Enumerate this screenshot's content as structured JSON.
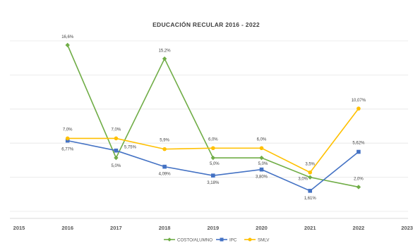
{
  "chart_data": {
    "type": "line",
    "title": "EDUCACIÓN RECULAR 2016 - 2022",
    "xlabel": "",
    "ylabel": "",
    "x_ticks": [
      "2015",
      "2016",
      "2017",
      "2018",
      "2019",
      "2020",
      "2021",
      "2022",
      "2023"
    ],
    "xlim": [
      2015,
      2023
    ],
    "ylim": [
      0,
      18
    ],
    "grid": true,
    "legend_position": "bottom",
    "series": [
      {
        "name": "COSTO/ALUMNO",
        "color": "#70ad47",
        "marker": "diamond",
        "x": [
          2016,
          2017,
          2018,
          2019,
          2020,
          2021,
          2022
        ],
        "y": [
          16.6,
          5.0,
          15.2,
          5.0,
          5.0,
          3.0,
          2.0
        ],
        "labels": [
          "16,6%",
          "5,0%",
          "15,2%",
          "5,0%",
          "5,0%",
          "3,0%",
          "2,0%"
        ]
      },
      {
        "name": "IPC",
        "color": "#4472c4",
        "marker": "square",
        "x": [
          2016,
          2017,
          2018,
          2019,
          2020,
          2021,
          2022
        ],
        "y": [
          6.77,
          5.75,
          4.09,
          3.18,
          3.8,
          1.61,
          5.62
        ],
        "labels": [
          "6,77%",
          "5,75%",
          "4,09%",
          "3,18%",
          "3,80%",
          "1,61%",
          "5,62%"
        ]
      },
      {
        "name": "SMLV",
        "color": "#ffc000",
        "marker": "circle",
        "x": [
          2016,
          2017,
          2018,
          2019,
          2020,
          2021,
          2022
        ],
        "y": [
          7.0,
          7.0,
          5.9,
          6.0,
          6.0,
          3.5,
          10.07
        ],
        "labels": [
          "7,0%",
          "7,0%",
          "5,9%",
          "6,0%",
          "6,0%",
          "3,5%",
          "10,07%"
        ]
      }
    ]
  }
}
